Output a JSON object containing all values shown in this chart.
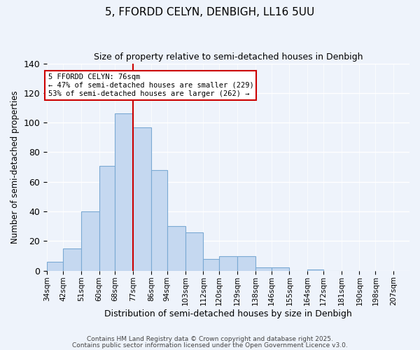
{
  "title": "5, FFORDD CELYN, DENBIGH, LL16 5UU",
  "subtitle": "Size of property relative to semi-detached houses in Denbigh",
  "xlabel": "Distribution of semi-detached houses by size in Denbigh",
  "ylabel": "Number of semi-detached properties",
  "bar_values": [
    6,
    15,
    40,
    71,
    106,
    97,
    68,
    30,
    26,
    8,
    10,
    10,
    2,
    2,
    0,
    1,
    0,
    0
  ],
  "bin_edges": [
    34,
    42,
    51,
    60,
    68,
    77,
    86,
    94,
    103,
    112,
    120,
    129,
    138,
    146,
    155,
    164,
    172,
    181,
    190
  ],
  "xtick_labels": [
    "34sqm",
    "42sqm",
    "51sqm",
    "60sqm",
    "68sqm",
    "77sqm",
    "86sqm",
    "94sqm",
    "103sqm",
    "112sqm",
    "120sqm",
    "129sqm",
    "138sqm",
    "146sqm",
    "155sqm",
    "164sqm",
    "172sqm",
    "181sqm",
    "190sqm",
    "198sqm",
    "207sqm"
  ],
  "bar_color": "#c5d8f0",
  "bar_edge_color": "#7baad4",
  "red_line_bin": 5,
  "annotation_title": "5 FFORDD CELYN: 76sqm",
  "annotation_line1": "← 47% of semi-detached houses are smaller (229)",
  "annotation_line2": "53% of semi-detached houses are larger (262) →",
  "annotation_box_color": "#ffffff",
  "annotation_border_color": "#cc0000",
  "ylim": [
    0,
    140
  ],
  "yticks": [
    0,
    20,
    40,
    60,
    80,
    100,
    120,
    140
  ],
  "footer1": "Contains HM Land Registry data © Crown copyright and database right 2025.",
  "footer2": "Contains public sector information licensed under the Open Government Licence v3.0.",
  "background_color": "#eef3fb"
}
